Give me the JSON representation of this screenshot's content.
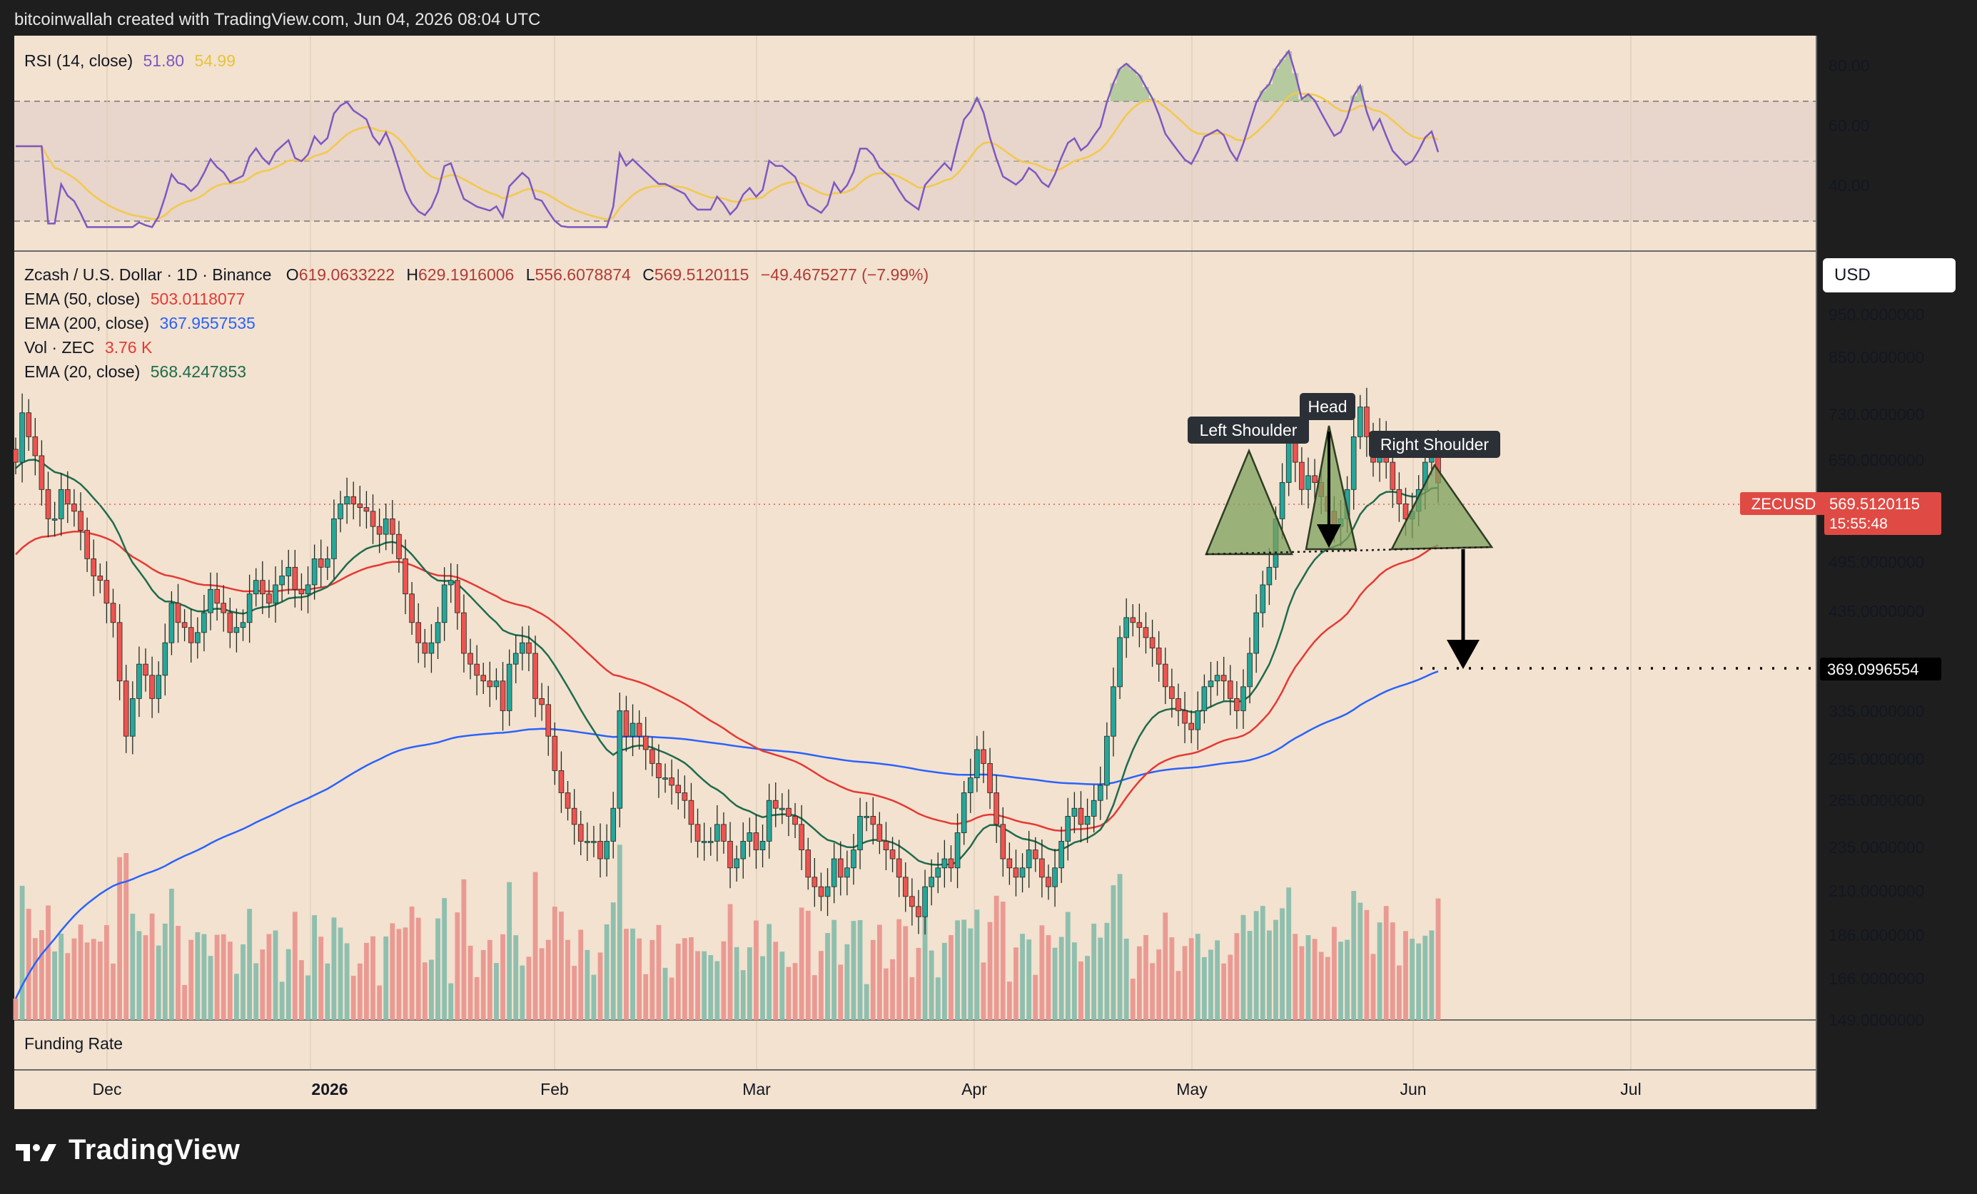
{
  "header": {
    "attribution": "bitcoinwallah created with TradingView.com, Jun 04, 2026 08:04 UTC"
  },
  "brand": {
    "logo_text": "TradingView",
    "logo_icon": "tradingview-logo-icon"
  },
  "colors": {
    "chart_bg": "#f2e2cf",
    "up": "#26a69a",
    "down": "#ef5350",
    "ema20": "#1e6b4e",
    "ema50": "#e53935",
    "ema200": "#2962ff",
    "rsi": "#7e57c2",
    "rsi_ma": "#f2c94c",
    "pattern_fill": "#7da05e"
  },
  "rsi_pane": {
    "legend": {
      "name": "RSI (14, close)",
      "value": "51.80",
      "ma_value": "54.99"
    },
    "axis_labels": [
      "80.00",
      "60.00",
      "40.00"
    ]
  },
  "price_pane": {
    "legend": {
      "symbol": "Zcash / U.S. Dollar · 1D · Binance",
      "o_label": "O",
      "o": "619.0633222",
      "h_label": "H",
      "h": "629.1916006",
      "l_label": "L",
      "l": "556.6078874",
      "c_label": "C",
      "c": "569.5120115",
      "change": "−49.4675277 (−7.99%)",
      "ema50_label": "EMA (50, close)",
      "ema50": "503.0118077",
      "ema200_label": "EMA (200, close)",
      "ema200": "367.9557535",
      "vol_label": "Vol · ZEC",
      "vol": "3.76 K",
      "ema20_label": "EMA (20, close)",
      "ema20": "568.4247853"
    },
    "currency": "USD",
    "axis_labels": [
      "950.0000000",
      "850.0000000",
      "730.0000000",
      "650.0000000",
      "495.0000000",
      "435.0000000",
      "335.0000000",
      "295.0000000",
      "265.0000000",
      "235.0000000",
      "210.0000000",
      "186.0000000",
      "166.0000000",
      "149.0000000"
    ],
    "price_tag": {
      "symbol": "ZECUSD",
      "price": "569.5120115",
      "countdown": "15:55:48"
    },
    "target_tag": "369.0996554",
    "annotations": {
      "left": "Left Shoulder",
      "head": "Head",
      "right": "Right Shoulder"
    }
  },
  "funding_pane": {
    "label": "Funding Rate"
  },
  "time_axis": [
    "Dec",
    "2026",
    "Feb",
    "Mar",
    "Apr",
    "May",
    "Jun",
    "Jul"
  ],
  "chart_data": {
    "type": "candlestick",
    "title": "Zcash / U.S. Dollar · 1D · Binance",
    "y_scale": "log",
    "ylim": [
      149,
      1000
    ],
    "x_start": "2025-11-21",
    "x_end": "2026-06-04",
    "last_close": 569.5120115,
    "neckline": 505,
    "target": 369.0996554,
    "series": [
      {
        "name": "EMA (20, close)",
        "last": 568.4247853
      },
      {
        "name": "EMA (50, close)",
        "last": 503.0118077
      },
      {
        "name": "EMA (200, close)",
        "last": 367.9557535
      }
    ],
    "closes": [
      600,
      680,
      640,
      610,
      560,
      520,
      520,
      560,
      540,
      530,
      505,
      470,
      450,
      445,
      420,
      400,
      345,
      300,
      330,
      360,
      350,
      330,
      350,
      380,
      420,
      400,
      395,
      380,
      390,
      410,
      435,
      420,
      410,
      390,
      395,
      400,
      430,
      445,
      430,
      420,
      440,
      450,
      460,
      435,
      430,
      440,
      470,
      460,
      470,
      520,
      540,
      550,
      540,
      535,
      530,
      510,
      500,
      520,
      500,
      470,
      430,
      400,
      380,
      370,
      380,
      400,
      440,
      445,
      410,
      370,
      360,
      350,
      345,
      340,
      345,
      320,
      360,
      370,
      380,
      370,
      330,
      325,
      300,
      275,
      260,
      250,
      240,
      230,
      230,
      230,
      220,
      230,
      250,
      320,
      300,
      310,
      300,
      290,
      280,
      270,
      270,
      265,
      260,
      255,
      240,
      230,
      230,
      230,
      240,
      230,
      215,
      220,
      230,
      235,
      225,
      230,
      255,
      250,
      250,
      245,
      240,
      225,
      210,
      205,
      200,
      205,
      220,
      210,
      215,
      225,
      245,
      245,
      240,
      230,
      225,
      220,
      210,
      200,
      195,
      190,
      205,
      210,
      215,
      220,
      215,
      235,
      260,
      270,
      290,
      280,
      260,
      240,
      220,
      215,
      210,
      215,
      225,
      220,
      210,
      205,
      215,
      230,
      245,
      250,
      240,
      245,
      255,
      265,
      300,
      340,
      385,
      405,
      400,
      395,
      385,
      375,
      360,
      340,
      330,
      320,
      310,
      305,
      320,
      340,
      345,
      350,
      345,
      330,
      320,
      340,
      370,
      410,
      440,
      460,
      520,
      570,
      630,
      600,
      560,
      580,
      570,
      550,
      530,
      510,
      520,
      560,
      640,
      690,
      640,
      600,
      640,
      600,
      560,
      540,
      520,
      530,
      560,
      600,
      620,
      569.5
    ]
  }
}
